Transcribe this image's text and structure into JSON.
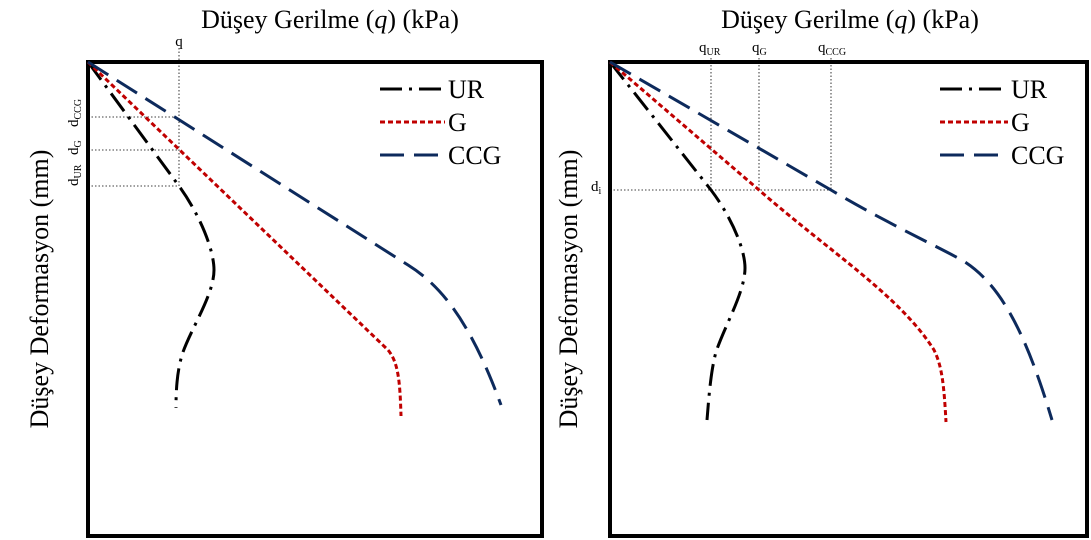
{
  "left": {
    "title_prefix": "Düşey Gerilme (",
    "title_var": "q",
    "title_suffix": ") (kPa)",
    "ylabel": "Düşey Deformasyon (mm)",
    "q_label": "q",
    "d_ur_main": "d",
    "d_ur_sub": "UR",
    "d_g_main": "d",
    "d_g_sub": "G",
    "d_ccg_main": "d",
    "d_ccg_sub": "CCG"
  },
  "right": {
    "title_prefix": "Düşey Gerilme (",
    "title_var": "q",
    "title_suffix": ") (kPa)",
    "ylabel": "Düşey Deformasyon (mm)",
    "q_ur_main": "q",
    "q_ur_sub": "UR",
    "q_g_main": "q",
    "q_g_sub": "G",
    "q_ccg_main": "q",
    "q_ccg_sub": "CCG",
    "d_i_main": "d",
    "d_i_sub": "i"
  },
  "legend": {
    "ur": "UR",
    "g": "G",
    "ccg": "CCG"
  },
  "colors": {
    "ur": "#000000",
    "g": "#c00000",
    "ccg": "#0d2a5c"
  }
}
